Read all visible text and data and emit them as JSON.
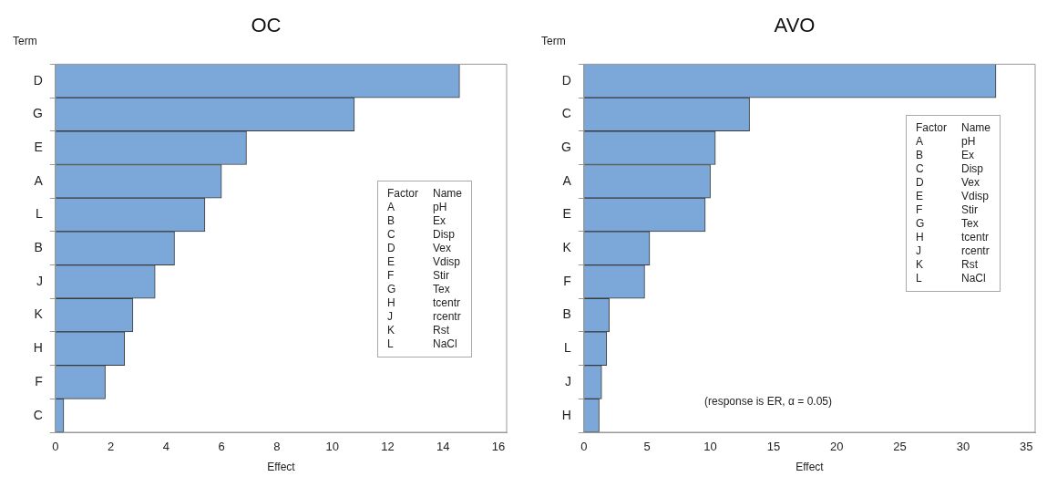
{
  "chart_data": [
    {
      "type": "bar",
      "orientation": "horizontal",
      "title": "OC",
      "ylabel": "Term",
      "xlabel": "Effect",
      "categories": [
        "D",
        "G",
        "E",
        "A",
        "L",
        "B",
        "J",
        "K",
        "H",
        "F",
        "C"
      ],
      "values": [
        14.6,
        10.8,
        6.9,
        6.0,
        5.4,
        4.3,
        3.6,
        2.8,
        2.5,
        1.8,
        0.3
      ],
      "color": "#7ba7d9",
      "xlim": [
        0,
        16.3
      ],
      "xticks": [
        0,
        2,
        4,
        6,
        8,
        10,
        12,
        14,
        16
      ],
      "grid": false,
      "annotations": [
        "Factor",
        "Name",
        "A",
        "pH",
        "B",
        "Ex",
        "C",
        "Disp",
        "D",
        "Vex",
        "E",
        "Vdisp",
        "F",
        "Stir",
        "G",
        "Tex",
        "H",
        "tcentr",
        "J",
        "rcentr",
        "K",
        "Rst",
        "L",
        "NaCl"
      ]
    },
    {
      "type": "bar",
      "orientation": "horizontal",
      "title": "AVO",
      "ylabel": "Term",
      "xlabel": "Effect",
      "categories": [
        "D",
        "C",
        "G",
        "A",
        "E",
        "K",
        "F",
        "B",
        "L",
        "J",
        "H"
      ],
      "values": [
        32.6,
        13.1,
        10.4,
        10.0,
        9.6,
        5.2,
        4.8,
        2.0,
        1.8,
        1.4,
        1.2
      ],
      "color": "#7ba7d9",
      "xlim": [
        0,
        35.7
      ],
      "xticks": [
        0,
        5,
        10,
        15,
        20,
        25,
        30,
        35
      ],
      "grid": false,
      "annotations": [
        "Factor",
        "Name",
        "A",
        "pH",
        "B",
        "Ex",
        "C",
        "Disp",
        "D",
        "Vex",
        "E",
        "Vdisp",
        "F",
        "Stir",
        "G",
        "Tex",
        "H",
        "tcentr",
        "J",
        "rcentr",
        "K",
        "Rst",
        "L",
        "NaCl",
        "(response is ER, α = 0.05)"
      ]
    }
  ]
}
